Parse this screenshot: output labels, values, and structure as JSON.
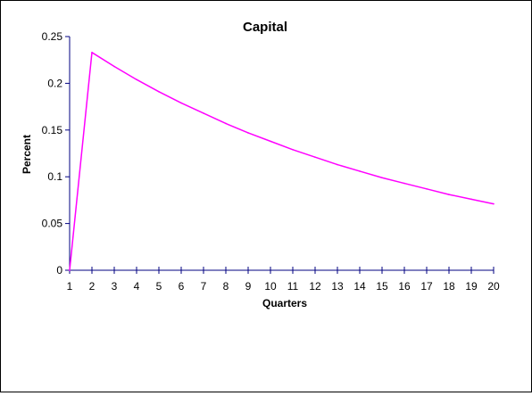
{
  "chart_data": {
    "type": "line",
    "title": "Capital",
    "xlabel": "Quarters",
    "ylabel": "Percent",
    "x": [
      1,
      2,
      3,
      4,
      5,
      6,
      7,
      8,
      9,
      10,
      11,
      12,
      13,
      14,
      15,
      16,
      17,
      18,
      19,
      20
    ],
    "series": [
      {
        "values": [
          0,
          0.233,
          0.218,
          0.204,
          0.191,
          0.179,
          0.168,
          0.157,
          0.147,
          0.138,
          0.129,
          0.121,
          0.113,
          0.106,
          0.099,
          0.093,
          0.087,
          0.081,
          0.076,
          0.071
        ],
        "color": "#ff00ff"
      }
    ],
    "ylim": [
      0,
      0.25
    ],
    "xlim": [
      1,
      20
    ],
    "y_ticks": [
      "0",
      "0.05",
      "0.1",
      "0.15",
      "0.2",
      "0.25"
    ],
    "x_ticks": [
      "1",
      "2",
      "3",
      "4",
      "5",
      "6",
      "7",
      "8",
      "9",
      "10",
      "11",
      "12",
      "13",
      "14",
      "15",
      "16",
      "17",
      "18",
      "19",
      "20"
    ],
    "grid": false,
    "legend": "none",
    "axis_color": "#000080"
  }
}
